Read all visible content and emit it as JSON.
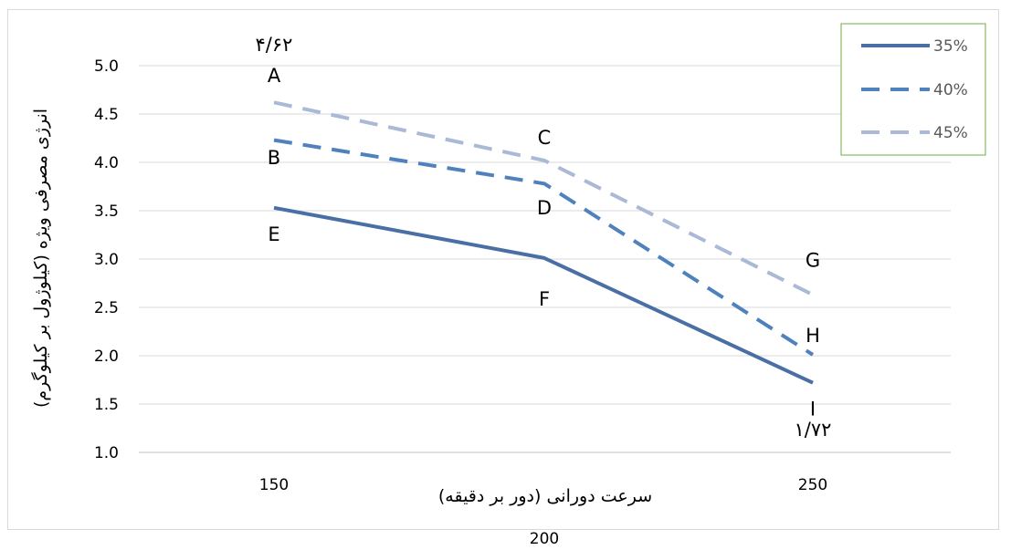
{
  "chart_data": {
    "type": "line",
    "x": [
      "150",
      "200",
      "250"
    ],
    "series": [
      {
        "name": "35%",
        "values": [
          3.53,
          3.01,
          1.72
        ],
        "color": "#4a6fa5",
        "dash": "solid"
      },
      {
        "name": "40%",
        "values": [
          4.23,
          3.78,
          2.01
        ],
        "color": "#4f81bd",
        "dash": "dash"
      },
      {
        "name": "45%",
        "values": [
          4.62,
          4.02,
          2.63
        ],
        "color": "#a9b9d6",
        "dash": "dash"
      }
    ],
    "ylim": [
      1.0,
      5.0
    ],
    "yticks": [
      "1.0",
      "1.5",
      "2.0",
      "2.5",
      "3.0",
      "3.5",
      "4.0",
      "4.5",
      "5.0"
    ],
    "xlabel": "سرعت دورانی (دور بر دقیقه)",
    "ylabel": "انرژی مصرفی ویژه (کیلوژول بر کیلوگرم)",
    "legend_position": "top-right",
    "grid": "horizontal",
    "annotations": [
      {
        "text": "A",
        "x": "150",
        "y": 4.83
      },
      {
        "text": "B",
        "x": "150",
        "y": 3.98
      },
      {
        "text": "E",
        "x": "150",
        "y": 3.19
      },
      {
        "text": "C",
        "x": "200",
        "y": 4.19
      },
      {
        "text": "D",
        "x": "200",
        "y": 3.46
      },
      {
        "text": "F",
        "x": "200",
        "y": 2.52
      },
      {
        "text": "G",
        "x": "250",
        "y": 2.92
      },
      {
        "text": "H",
        "x": "250",
        "y": 2.14
      },
      {
        "text": "I",
        "x": "250",
        "y": 1.38
      },
      {
        "text": "۴/۶۲",
        "x": "150",
        "y": 5.15
      },
      {
        "text": "۱/۷۲",
        "x": "250",
        "y": 1.17
      }
    ]
  }
}
